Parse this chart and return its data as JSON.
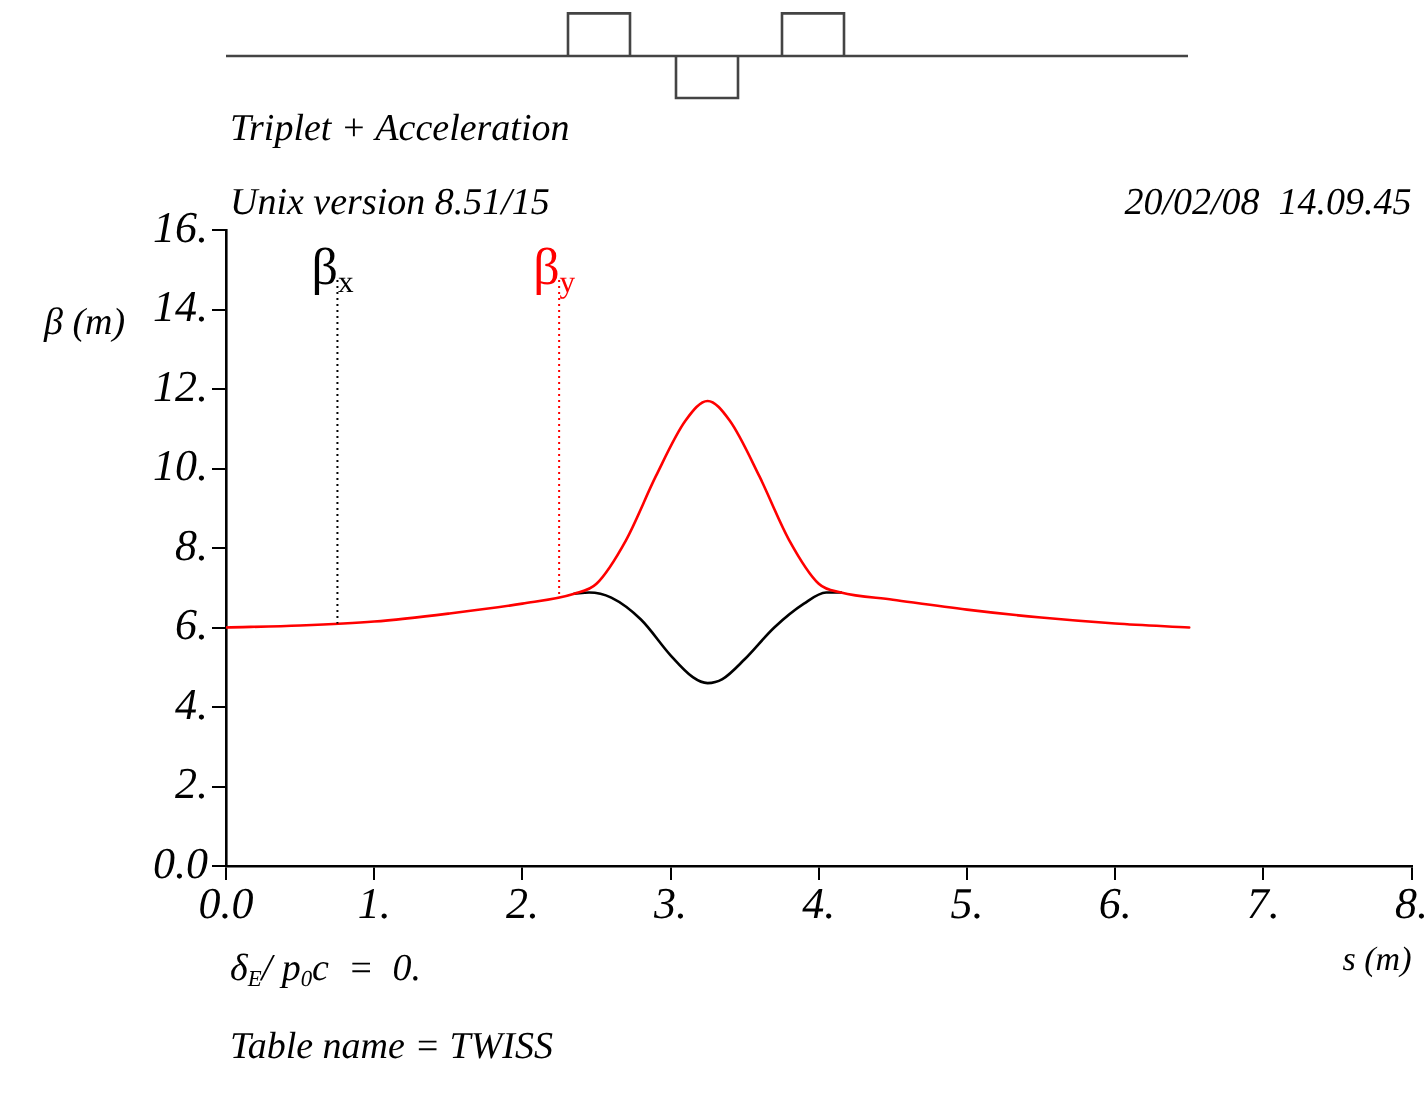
{
  "chart_data": {
    "type": "line",
    "title": "Triplet + Acceleration",
    "subtitle": "Unix version 8.51/15",
    "xlabel": "s (m)",
    "ylabel": "β (m)",
    "annotations": [
      "20/02/08  14.09.45",
      "δ$_{E}$/ p$_{0}$c  =  0.",
      "Table name = TWISS"
    ],
    "xlim": [
      0,
      8
    ],
    "xticks": [
      {
        "value": 0,
        "label": "0.0"
      },
      {
        "value": 1,
        "label": "1."
      },
      {
        "value": 2,
        "label": "2."
      },
      {
        "value": 3,
        "label": "3."
      },
      {
        "value": 4,
        "label": "4."
      },
      {
        "value": 5,
        "label": "5."
      },
      {
        "value": 6,
        "label": "6."
      },
      {
        "value": 7,
        "label": "7."
      },
      {
        "value": 8,
        "label": "8."
      }
    ],
    "ylim": [
      0,
      16
    ],
    "yticks": [
      {
        "value": 0,
        "label": "0.0"
      },
      {
        "value": 2,
        "label": "2."
      },
      {
        "value": 4,
        "label": "4."
      },
      {
        "value": 6,
        "label": "6."
      },
      {
        "value": 8,
        "label": "8."
      },
      {
        "value": 10,
        "label": "10."
      },
      {
        "value": 12,
        "label": "12."
      },
      {
        "value": 14,
        "label": "14."
      },
      {
        "value": 16,
        "label": "16."
      }
    ],
    "grid": false,
    "legend": false,
    "marker": "none",
    "line_style": "solid",
    "series": [
      {
        "name": "β$_{x}$",
        "color": "#000000",
        "x": [
          2.35,
          2.45,
          2.6,
          2.8,
          3.0,
          3.15,
          3.25,
          3.35,
          3.5,
          3.7,
          3.9,
          4.05,
          4.15
        ],
        "values": [
          6.85,
          6.88,
          6.75,
          6.2,
          5.3,
          4.75,
          4.6,
          4.7,
          5.2,
          6.0,
          6.6,
          6.88,
          6.88
        ]
      },
      {
        "name": "β$_{y}$",
        "color": "#ff0000",
        "x": [
          0,
          0.5,
          1,
          1.5,
          2,
          2.35,
          2.5,
          2.7,
          2.9,
          3.1,
          3.25,
          3.4,
          3.6,
          3.8,
          4.0,
          4.15,
          4.5,
          5,
          5.5,
          6,
          6.5
        ],
        "values": [
          6.0,
          6.05,
          6.15,
          6.35,
          6.6,
          6.85,
          7.1,
          8.2,
          9.8,
          11.2,
          11.7,
          11.2,
          9.8,
          8.2,
          7.1,
          6.88,
          6.7,
          6.45,
          6.25,
          6.1,
          6.0
        ]
      }
    ]
  }
}
